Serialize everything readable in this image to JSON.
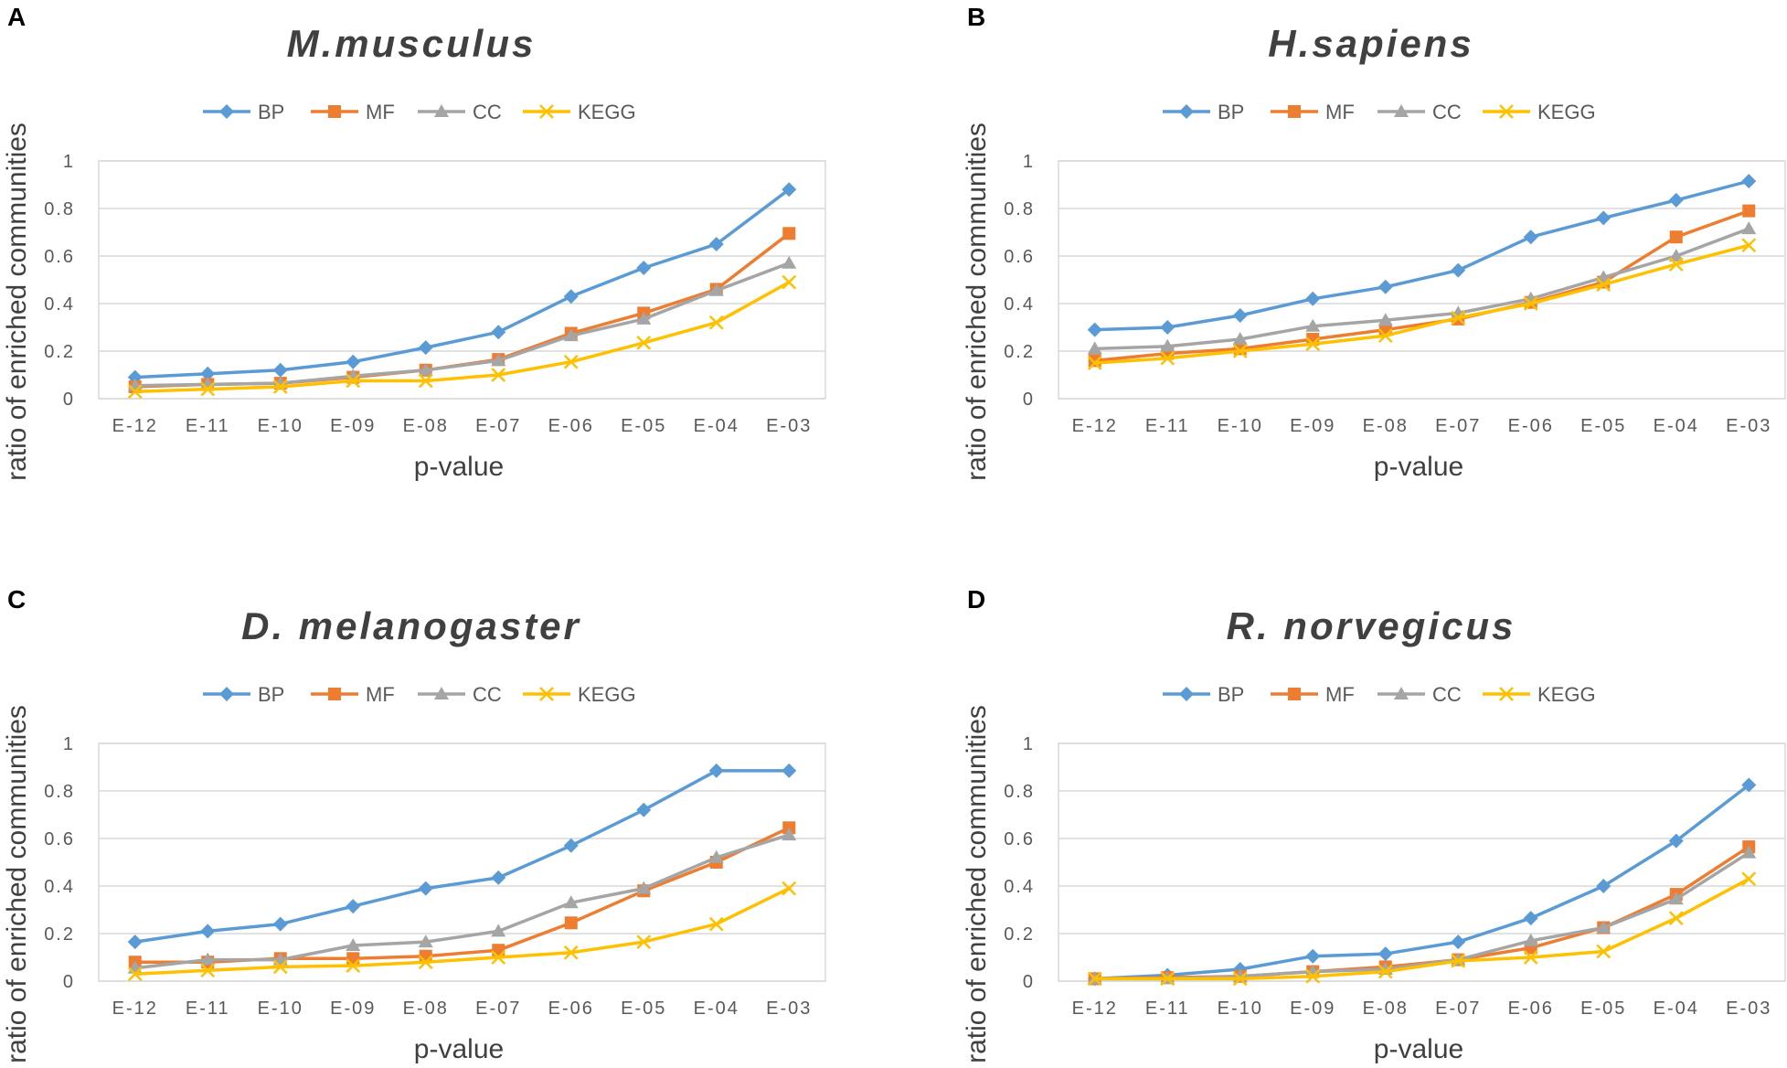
{
  "chart_data": [
    {
      "panel": "A",
      "title": "M.musculus",
      "type": "line",
      "xlabel": "p-value",
      "ylabel": "ratio of enriched communities",
      "ylim": [
        0,
        1
      ],
      "yticks": [
        "0",
        "0.2",
        "0.4",
        "0.6",
        "0.8",
        "1"
      ],
      "categories": [
        "E-12",
        "E-11",
        "E-10",
        "E-09",
        "E-08",
        "E-07",
        "E-06",
        "E-05",
        "E-04",
        "E-03"
      ],
      "series": [
        {
          "name": "BP",
          "values": [
            0.09,
            0.105,
            0.12,
            0.155,
            0.215,
            0.28,
            0.43,
            0.55,
            0.65,
            0.88
          ]
        },
        {
          "name": "MF",
          "values": [
            0.05,
            0.06,
            0.065,
            0.09,
            0.12,
            0.165,
            0.275,
            0.36,
            0.46,
            0.695
          ]
        },
        {
          "name": "CC",
          "values": [
            0.055,
            0.06,
            0.065,
            0.095,
            0.12,
            0.16,
            0.265,
            0.335,
            0.455,
            0.57
          ]
        },
        {
          "name": "KEGG",
          "values": [
            0.03,
            0.04,
            0.05,
            0.075,
            0.075,
            0.1,
            0.155,
            0.235,
            0.32,
            0.49
          ]
        }
      ]
    },
    {
      "panel": "B",
      "title": "H.sapiens",
      "type": "line",
      "xlabel": "p-value",
      "ylabel": "ratio of enriched communities",
      "ylim": [
        0,
        1
      ],
      "yticks": [
        "0",
        "0.2",
        "0.4",
        "0.6",
        "0.8",
        "1"
      ],
      "categories": [
        "E-12",
        "E-11",
        "E-10",
        "E-09",
        "E-08",
        "E-07",
        "E-06",
        "E-05",
        "E-04",
        "E-03"
      ],
      "series": [
        {
          "name": "BP",
          "values": [
            0.29,
            0.3,
            0.35,
            0.42,
            0.47,
            0.54,
            0.68,
            0.76,
            0.835,
            0.915
          ]
        },
        {
          "name": "MF",
          "values": [
            0.16,
            0.19,
            0.21,
            0.25,
            0.29,
            0.335,
            0.405,
            0.49,
            0.68,
            0.79
          ]
        },
        {
          "name": "CC",
          "values": [
            0.21,
            0.22,
            0.25,
            0.305,
            0.33,
            0.36,
            0.42,
            0.51,
            0.6,
            0.715
          ]
        },
        {
          "name": "KEGG",
          "values": [
            0.15,
            0.17,
            0.2,
            0.23,
            0.265,
            0.34,
            0.4,
            0.48,
            0.565,
            0.645
          ]
        }
      ]
    },
    {
      "panel": "C",
      "title": "D. melanogaster",
      "type": "line",
      "xlabel": "p-value",
      "ylabel": "ratio of enriched communities",
      "ylim": [
        0,
        1
      ],
      "yticks": [
        "0",
        "0.2",
        "0.4",
        "0.6",
        "0.8",
        "1"
      ],
      "categories": [
        "E-12",
        "E-11",
        "E-10",
        "E-09",
        "E-08",
        "E-07",
        "E-06",
        "E-05",
        "E-04",
        "E-03"
      ],
      "series": [
        {
          "name": "BP",
          "values": [
            0.165,
            0.21,
            0.24,
            0.315,
            0.39,
            0.435,
            0.57,
            0.72,
            0.885,
            0.885
          ]
        },
        {
          "name": "MF",
          "values": [
            0.08,
            0.08,
            0.095,
            0.095,
            0.105,
            0.13,
            0.245,
            0.38,
            0.5,
            0.645
          ]
        },
        {
          "name": "CC",
          "values": [
            0.055,
            0.09,
            0.09,
            0.15,
            0.165,
            0.21,
            0.33,
            0.39,
            0.52,
            0.615
          ]
        },
        {
          "name": "KEGG",
          "values": [
            0.03,
            0.045,
            0.06,
            0.065,
            0.08,
            0.1,
            0.12,
            0.165,
            0.24,
            0.39
          ]
        }
      ]
    },
    {
      "panel": "D",
      "title": "R. norvegicus",
      "type": "line",
      "xlabel": "p-value",
      "ylabel": "ratio of enriched communities",
      "ylim": [
        0,
        1
      ],
      "yticks": [
        "0",
        "0.2",
        "0.4",
        "0.6",
        "0.8",
        "1"
      ],
      "categories": [
        "E-12",
        "E-11",
        "E-10",
        "E-09",
        "E-08",
        "E-07",
        "E-06",
        "E-05",
        "E-04",
        "E-03"
      ],
      "series": [
        {
          "name": "BP",
          "values": [
            0.01,
            0.025,
            0.05,
            0.105,
            0.115,
            0.165,
            0.265,
            0.4,
            0.59,
            0.825
          ]
        },
        {
          "name": "MF",
          "values": [
            0.01,
            0.015,
            0.02,
            0.04,
            0.06,
            0.09,
            0.14,
            0.225,
            0.365,
            0.565
          ]
        },
        {
          "name": "CC",
          "values": [
            0.01,
            0.01,
            0.02,
            0.04,
            0.05,
            0.09,
            0.17,
            0.225,
            0.345,
            0.54
          ]
        },
        {
          "name": "KEGG",
          "values": [
            0.01,
            0.01,
            0.01,
            0.02,
            0.04,
            0.085,
            0.1,
            0.125,
            0.265,
            0.43
          ]
        }
      ]
    }
  ],
  "legend": [
    {
      "name": "BP",
      "color": "#5B9BD5",
      "marker": "diamond"
    },
    {
      "name": "MF",
      "color": "#ED7D31",
      "marker": "square"
    },
    {
      "name": "CC",
      "color": "#A5A5A5",
      "marker": "triangle"
    },
    {
      "name": "KEGG",
      "color": "#FFC000",
      "marker": "x"
    }
  ],
  "grid_color": "#D9D9D9"
}
